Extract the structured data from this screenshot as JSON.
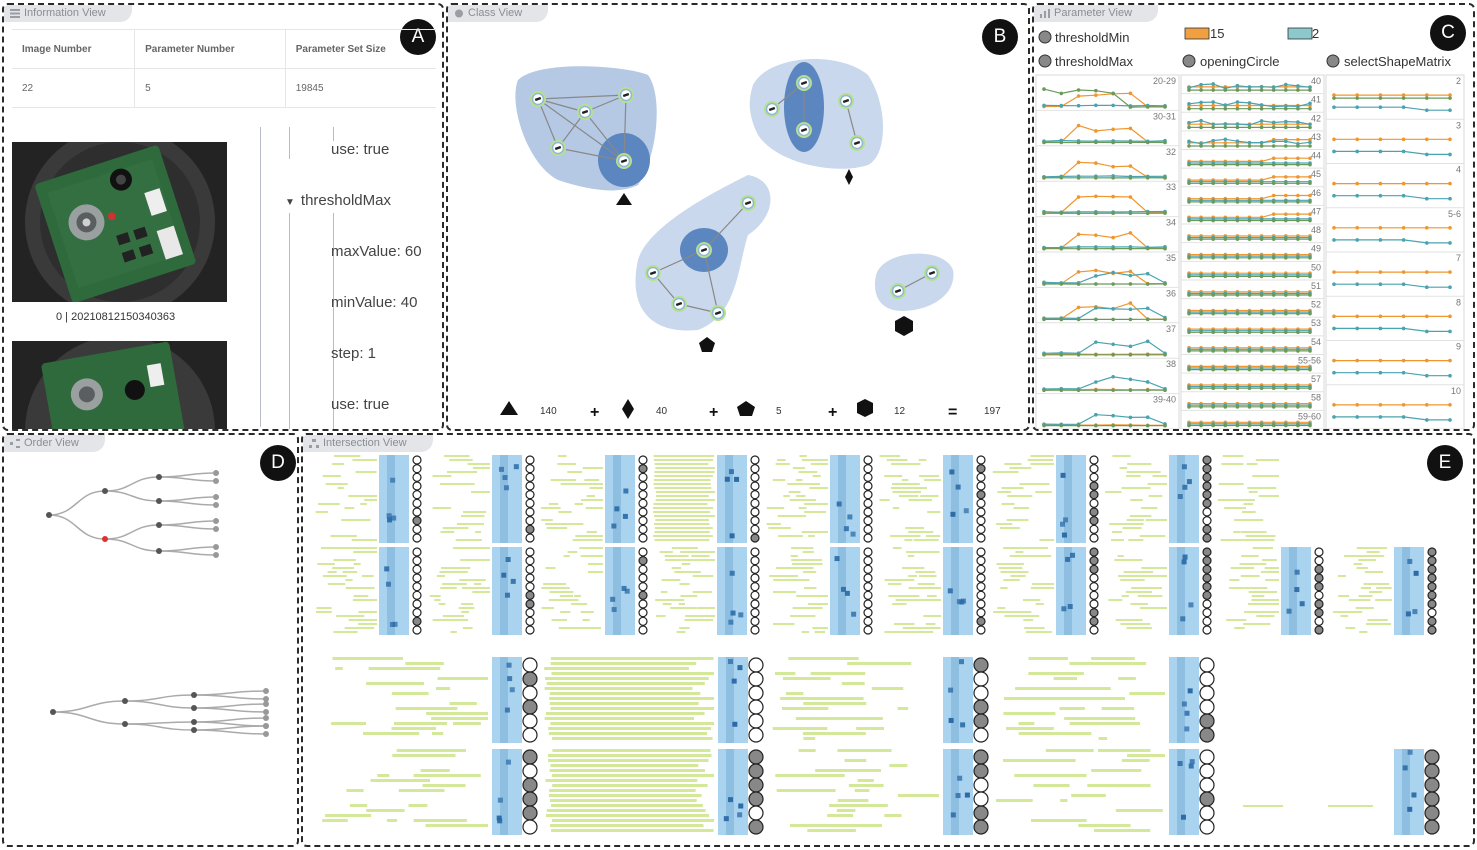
{
  "panels": {
    "info": {
      "title": "Information View",
      "badge": "A"
    },
    "class": {
      "title": "Class View",
      "badge": "B"
    },
    "param": {
      "title": "Parameter View",
      "badge": "C"
    },
    "order": {
      "title": "Order View",
      "badge": "D"
    },
    "intersection": {
      "title": "Intersection View",
      "badge": "E"
    }
  },
  "info_table": {
    "headers": [
      "Image Number",
      "Parameter Number",
      "Parameter Set Size"
    ],
    "values": [
      "22",
      "5",
      "19845"
    ]
  },
  "images": [
    {
      "caption": "0 | 20210812150340363"
    }
  ],
  "param_tree": [
    {
      "text": "use: true",
      "indent": 2
    },
    {
      "text": "thresholdMax",
      "indent": 1,
      "expanded": true
    },
    {
      "text": "maxValue: 60",
      "indent": 2
    },
    {
      "text": "minValue: 40",
      "indent": 2
    },
    {
      "text": "step: 1",
      "indent": 2
    },
    {
      "text": "use: true",
      "indent": 2
    }
  ],
  "class_summary": {
    "counts": [
      "140",
      "40",
      "5",
      "12"
    ],
    "plus": "+",
    "equals": "=",
    "total": "197"
  },
  "param_legend": {
    "params": [
      "thresholdMin",
      "thresholdMax",
      "openingCircle",
      "selectShapeMatrix"
    ],
    "series": [
      {
        "label": "15",
        "color": "#f0a040"
      },
      {
        "label": "2",
        "color": "#8cc8cc"
      }
    ]
  },
  "param_columns": [
    {
      "rows": [
        "20-29",
        "30-31",
        "32",
        "33",
        "34",
        "35",
        "36",
        "37",
        "38",
        "39-40"
      ]
    },
    {
      "rows": [
        "40",
        "41",
        "42",
        "43",
        "44",
        "45",
        "46",
        "47",
        "48",
        "49",
        "50",
        "51",
        "52",
        "53",
        "54",
        "55-56",
        "57",
        "58",
        "59-60"
      ]
    },
    {
      "rows": [
        "2",
        "3",
        "4",
        "5-6",
        "7",
        "8",
        "9",
        "10"
      ]
    }
  ],
  "colors": {
    "orange": "#f0962e",
    "teal": "#4aa3b0",
    "green": "#6a9a5a",
    "blob_dark": "#5b86bf",
    "blob_light": "#c9d8ec",
    "lime": "#d4e89a",
    "matrix": "#a9d3ee"
  }
}
